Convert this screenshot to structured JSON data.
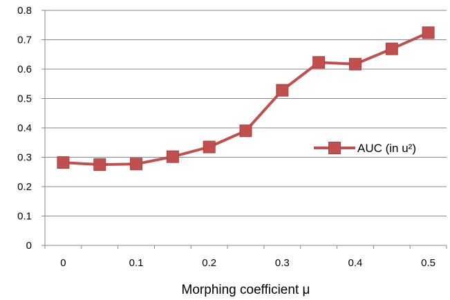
{
  "chart_data": {
    "type": "line",
    "title": "",
    "xlabel": "Morphing coefficient μ",
    "ylabel": "",
    "x": [
      0,
      0.05,
      0.1,
      0.15,
      0.2,
      0.25,
      0.3,
      0.35,
      0.4,
      0.45,
      0.5
    ],
    "x_tick_labels": [
      "0",
      "0.1",
      "0.2",
      "0.3",
      "0.4",
      "0.5"
    ],
    "x_tick_values": [
      0,
      0.1,
      0.2,
      0.3,
      0.4,
      0.5
    ],
    "y_tick_labels": [
      "0",
      "0.1",
      "0.2",
      "0.3",
      "0.4",
      "0.5",
      "0.6",
      "0.7",
      "0.8"
    ],
    "ylim": [
      0,
      0.8
    ],
    "grid": "horizontal",
    "legend_position": "right",
    "series": [
      {
        "name": "AUC (in u²)",
        "color": "#c0504d",
        "marker": "square",
        "values": [
          0.282,
          0.275,
          0.277,
          0.302,
          0.335,
          0.39,
          0.528,
          0.623,
          0.617,
          0.669,
          0.724
        ]
      }
    ]
  }
}
